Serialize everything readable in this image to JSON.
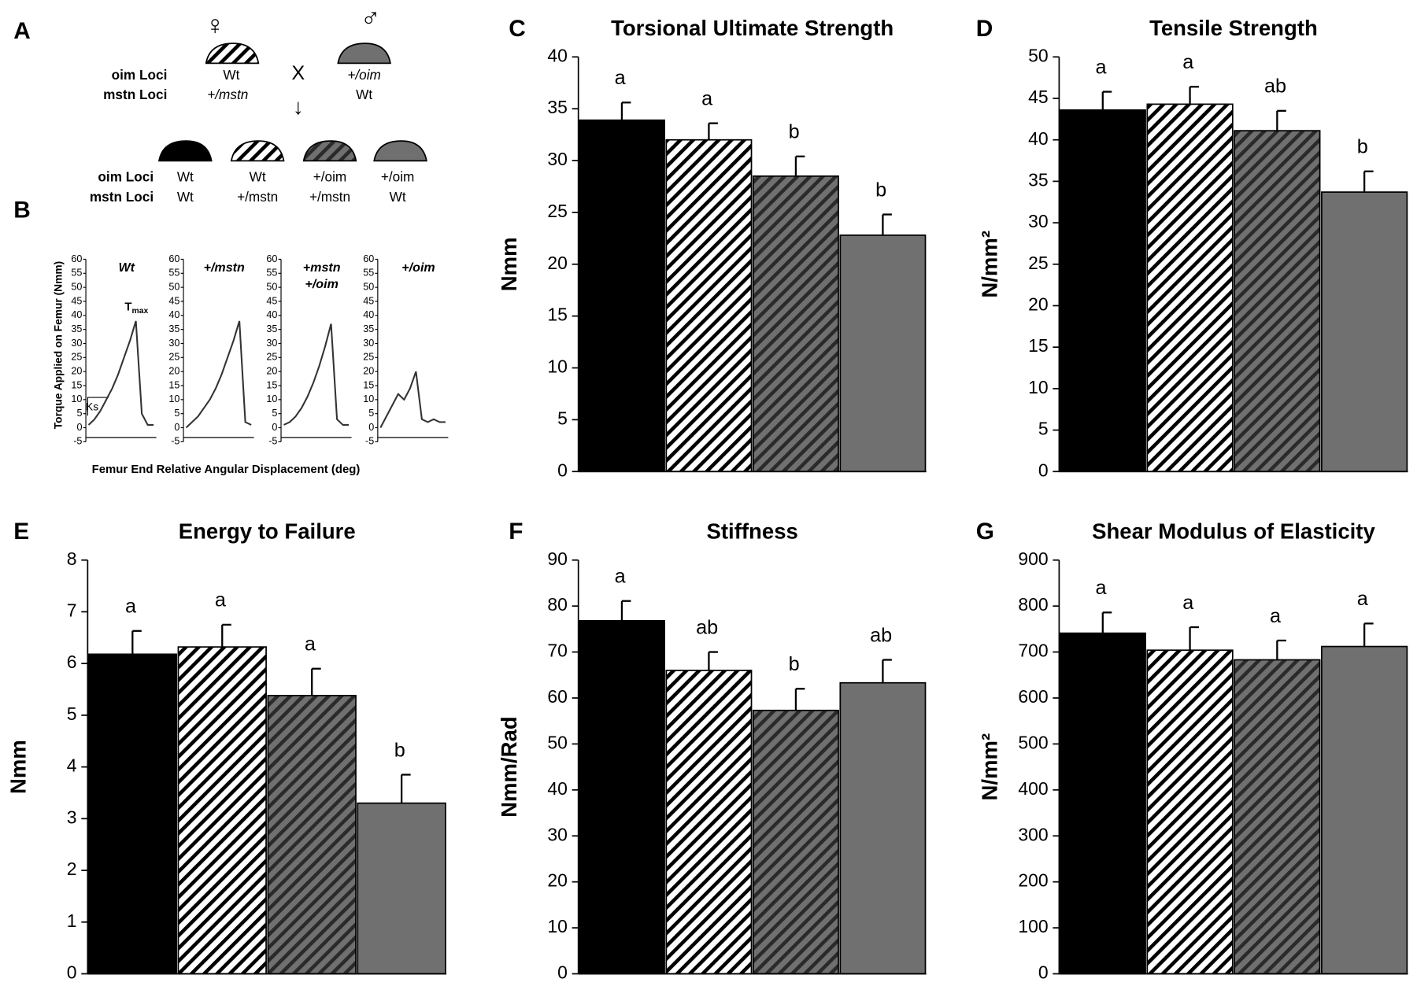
{
  "panel_a": {
    "label": "A",
    "female": "♀",
    "male": "♂",
    "cross": "X",
    "arrow": "↓",
    "row_labels": [
      "oim Loci",
      "mstn Loci"
    ],
    "parents": [
      [
        "Wt",
        "+/mstn"
      ],
      [
        "+/oim",
        "Wt"
      ]
    ],
    "offspring": [
      [
        "Wt",
        "Wt"
      ],
      [
        "Wt",
        "+/mstn"
      ],
      [
        "+/oim",
        "+/mstn"
      ],
      [
        "+/oim",
        "Wt"
      ]
    ]
  },
  "panel_b": {
    "label": "B",
    "ylabel": "Torque  Applied on Femur (Nmm)",
    "xlabel": "Femur End Relative Angular Displacement (deg)",
    "peak_label": "T",
    "peak_sub": "max",
    "slope_label": "Ks"
  },
  "chart_data": [
    {
      "type": "line",
      "title": [
        "Wt"
      ],
      "values": [
        1,
        3,
        6,
        10,
        14,
        19,
        25,
        31,
        38,
        5,
        1,
        1
      ],
      "color": "#333333",
      "ylim": [
        -5,
        60
      ],
      "yticks": [
        -5,
        0,
        5,
        10,
        15,
        20,
        25,
        30,
        35,
        40,
        45,
        50,
        55,
        60
      ]
    },
    {
      "type": "line",
      "title": [
        "+/mstn"
      ],
      "values": [
        0,
        2,
        4,
        7,
        10,
        14,
        19,
        25,
        31,
        38,
        2,
        1
      ],
      "color": "#333333",
      "ylim": [
        -5,
        60
      ],
      "yticks": [
        -5,
        0,
        5,
        10,
        15,
        20,
        25,
        30,
        35,
        40,
        45,
        50,
        55,
        60
      ]
    },
    {
      "type": "line",
      "title": [
        "+mstn",
        "+/oim"
      ],
      "values": [
        1,
        2,
        4,
        7,
        11,
        16,
        22,
        29,
        37,
        3,
        1,
        1
      ],
      "color": "#333333",
      "ylim": [
        -5,
        60
      ],
      "yticks": [
        -5,
        0,
        5,
        10,
        15,
        20,
        25,
        30,
        35,
        40,
        45,
        50,
        55,
        60
      ]
    },
    {
      "type": "line",
      "title": [
        "+/oim"
      ],
      "values": [
        0,
        4,
        8,
        12,
        10,
        14,
        20,
        3,
        2,
        3,
        2,
        2
      ],
      "color": "#333333",
      "ylim": [
        -5,
        60
      ],
      "yticks": [
        -5,
        0,
        5,
        10,
        15,
        20,
        25,
        30,
        35,
        40,
        45,
        50,
        55,
        60
      ]
    },
    {
      "type": "bar",
      "panel": "C",
      "title": "Torsional Ultimate Strength",
      "ylabel": "Nmm",
      "values": [
        33.9,
        32,
        28.5,
        22.8
      ],
      "errors": [
        1.7,
        1.6,
        1.9,
        2.0
      ],
      "annotations": [
        "a",
        "a",
        "b",
        "b"
      ],
      "colors": [
        "#000000",
        "#ffffff",
        "#707070",
        "#707070"
      ],
      "hatch_colors": [
        null,
        "#000000",
        "#2a2a2a",
        null
      ],
      "ylim": [
        0,
        40
      ],
      "yticks": [
        0,
        5,
        10,
        15,
        20,
        25,
        30,
        35,
        40
      ]
    },
    {
      "type": "bar",
      "panel": "D",
      "title": "Tensile Strength",
      "ylabel": "N/mm²",
      "values": [
        43.6,
        44.3,
        41.1,
        33.7
      ],
      "errors": [
        2.2,
        2.1,
        2.4,
        2.5
      ],
      "annotations": [
        "a",
        "a",
        "ab",
        "b"
      ],
      "colors": [
        "#000000",
        "#ffffff",
        "#707070",
        "#707070"
      ],
      "hatch_colors": [
        null,
        "#000000",
        "#2a2a2a",
        null
      ],
      "ylim": [
        0,
        50
      ],
      "yticks": [
        0,
        5,
        10,
        15,
        20,
        25,
        30,
        35,
        40,
        45,
        50
      ]
    },
    {
      "type": "bar",
      "panel": "E",
      "title": "Energy to Failure",
      "ylabel": "Nmm",
      "values": [
        6.18,
        6.32,
        5.38,
        3.3
      ],
      "errors": [
        0.45,
        0.43,
        0.52,
        0.55
      ],
      "annotations": [
        "a",
        "a",
        "a",
        "b"
      ],
      "colors": [
        "#000000",
        "#ffffff",
        "#707070",
        "#707070"
      ],
      "hatch_colors": [
        null,
        "#000000",
        "#2a2a2a",
        null
      ],
      "ylim": [
        0,
        8
      ],
      "yticks": [
        0,
        1,
        2,
        3,
        4,
        5,
        6,
        7,
        8
      ]
    },
    {
      "type": "bar",
      "panel": "F",
      "title": "Stiffness",
      "ylabel": "Nmm/Rad",
      "values": [
        76.8,
        66,
        57.3,
        63.3
      ],
      "errors": [
        4.3,
        4.0,
        4.7,
        5.0
      ],
      "annotations": [
        "a",
        "ab",
        "b",
        "ab"
      ],
      "colors": [
        "#000000",
        "#ffffff",
        "#707070",
        "#707070"
      ],
      "hatch_colors": [
        null,
        "#000000",
        "#2a2a2a",
        null
      ],
      "ylim": [
        0,
        90
      ],
      "yticks": [
        0,
        10,
        20,
        30,
        40,
        50,
        60,
        70,
        80,
        90
      ]
    },
    {
      "type": "bar",
      "panel": "G",
      "title": "Shear Modulus of Elasticity",
      "ylabel": "N/mm²",
      "values": [
        741,
        704,
        683,
        712
      ],
      "errors": [
        45,
        50,
        42,
        50
      ],
      "annotations": [
        "a",
        "a",
        "a",
        "a"
      ],
      "colors": [
        "#000000",
        "#ffffff",
        "#707070",
        "#707070"
      ],
      "hatch_colors": [
        null,
        "#000000",
        "#2a2a2a",
        null
      ],
      "ylim": [
        0,
        900
      ],
      "yticks": [
        0,
        100,
        200,
        300,
        400,
        500,
        600,
        700,
        800,
        900
      ]
    }
  ]
}
